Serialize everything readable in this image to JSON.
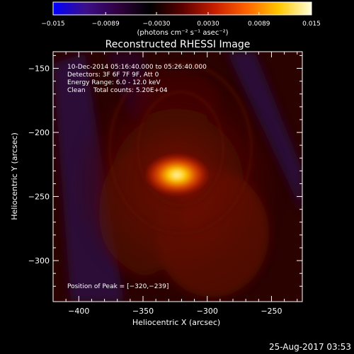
{
  "chart_data": {
    "type": "heatmap",
    "title": "Reconstructed RHESSI Image",
    "xlabel": "Heliocentric X (arcsec)",
    "ylabel": "Heliocentric Y (arcsec)",
    "xlim": [
      -420,
      -226
    ],
    "ylim": [
      -332,
      -137
    ],
    "xticks": [
      -400,
      -350,
      -300,
      -250
    ],
    "yticks": [
      -150,
      -200,
      -250,
      -300
    ],
    "xtick_labels": [
      "−400",
      "−350",
      "−300",
      "−250"
    ],
    "ytick_labels": [
      "−150",
      "−200",
      "−250",
      "−300"
    ],
    "colorbar": {
      "range": [
        -0.015,
        0.015
      ],
      "ticks": [
        -0.015,
        -0.0089,
        -0.003,
        0.003,
        0.0089,
        0.015
      ],
      "tick_labels": [
        "−0.015",
        "−0.0089",
        "−0.0030",
        "0.0030",
        "0.0089",
        "0.015"
      ],
      "unit_label": "(photons cm⁻² s⁻¹ asec⁻²)",
      "colors": [
        "#0000ff",
        "#3c0f8a",
        "#300040",
        "#000000",
        "#5a0000",
        "#c81e00",
        "#ff6400",
        "#ffc800",
        "#ffffdc"
      ]
    },
    "peak": {
      "x": -320,
      "y": -239,
      "value": 0.015
    },
    "annotations": [
      "10-Dec-2014 05:16:40.000 to 05:26:40.000",
      "Detectors: 3F 6F 7F 9F, Att 0",
      "Energy Range: 6.0 - 12.0 keV",
      "Clean    Total counts: 5.20E+04"
    ],
    "peak_label": "Position of Peak = [−320,−239]",
    "footer_date": "25-Aug-2017 03:53"
  }
}
